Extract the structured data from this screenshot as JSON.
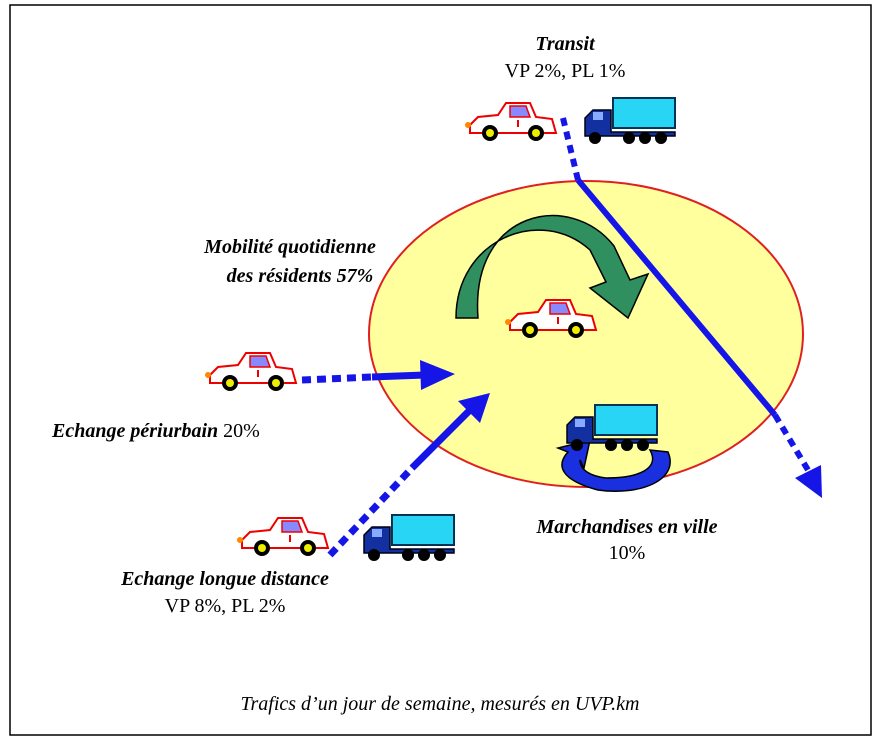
{
  "transit": {
    "title": "Transit",
    "detail": "VP 2%, PL 1%"
  },
  "residents": {
    "line1": "Mobilité quotidienne",
    "line2": "des résidents 57%"
  },
  "periurbain": {
    "title": "Echange périurbain",
    "share": "20%"
  },
  "long_distance": {
    "title": "Echange longue distance",
    "detail": "VP 8%, PL 2%"
  },
  "goods": {
    "title": "Marchandises en ville",
    "share": "10%"
  },
  "caption": "Trafics d’un jour de semaine, mesurés en UVP.km"
}
